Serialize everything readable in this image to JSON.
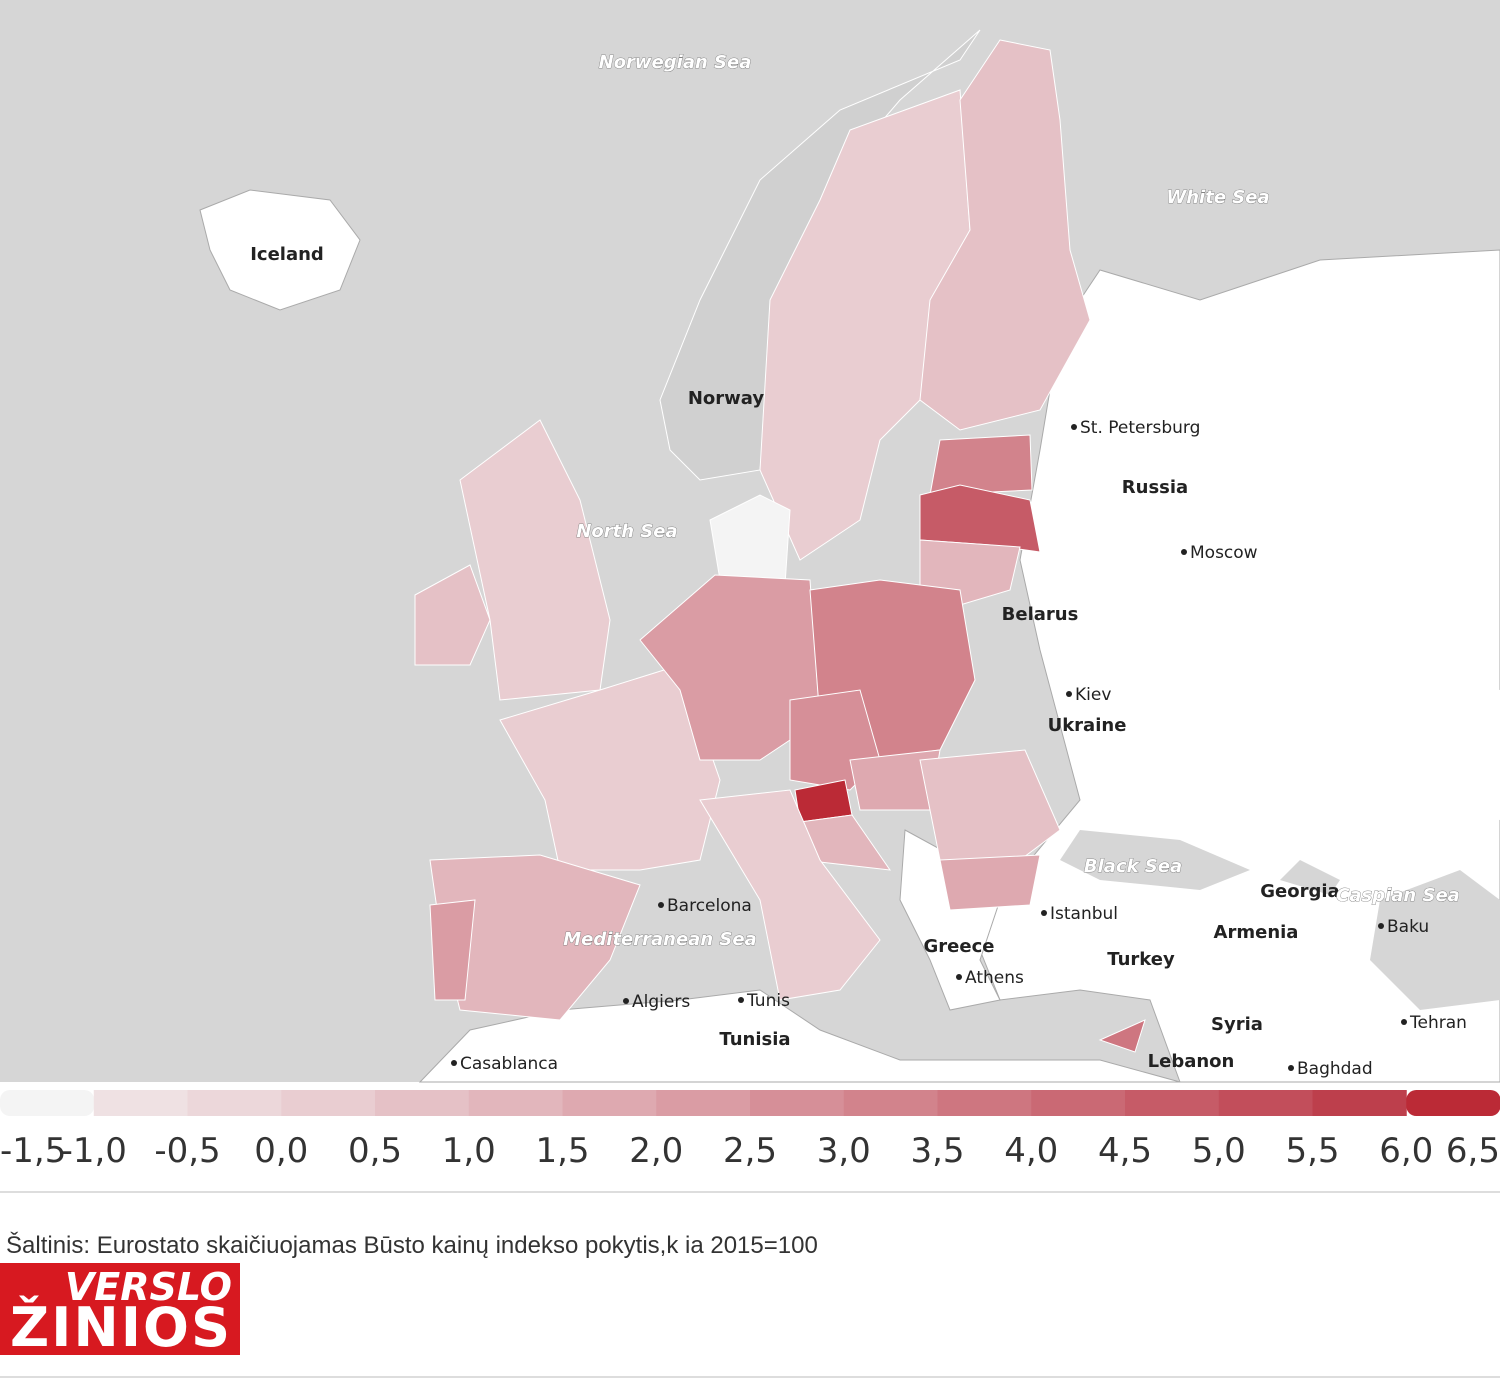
{
  "map_labels": [
    "Norwegian Sea",
    "White Sea",
    "Iceland",
    "Norway",
    "St. Petersburg",
    "Russia",
    "Moscow",
    "North Sea",
    "Belarus",
    "Kiev",
    "Ukraine",
    "Black Sea",
    "Georgia",
    "Caspian Sea",
    "Baku",
    "Istanbul",
    "Armenia",
    "Turkey",
    "Greece",
    "Athens",
    "Barcelona",
    "Mediterranean Sea",
    "Algiers",
    "Tunis",
    "Tunisia",
    "Syria",
    "Tehran",
    "Lebanon",
    "Baghdad",
    "Casablanca"
  ],
  "regions": [
    {
      "value": 0.3
    },
    {
      "value": 0.6
    },
    {
      "value": 3.0
    },
    {
      "value": 4.6
    },
    {
      "value": 1.4
    },
    {
      "value": -1.2
    },
    {
      "value": 0.8
    },
    {
      "value": 0.2
    },
    {
      "value": 0.1
    },
    {
      "value": 2.2
    },
    {
      "value": 3.0
    },
    {
      "value": 2.6
    },
    {
      "value": 6.2
    },
    {
      "value": 1.0
    },
    {
      "value": 1.6
    },
    {
      "value": 0.9
    },
    {
      "value": 1.8
    },
    {
      "value": 0.2
    },
    {
      "value": 1.0
    },
    {
      "value": 2.1
    },
    {
      "value": 3.6
    }
  ],
  "legend": {
    "colors": [
      "#f4f4f4",
      "#efe1e3",
      "#ecd7da",
      "#e9cdd1",
      "#e5c1c6",
      "#e2b6bc",
      "#dea9b0",
      "#da9ca4",
      "#d68f98",
      "#d2838c",
      "#ce7680",
      "#ca6974",
      "#c65b67",
      "#c24e5b",
      "#bd3f4c",
      "#bb2a36"
    ],
    "ticks": [
      {
        "value": -1.5,
        "label": "-1,5"
      },
      {
        "value": -1.0,
        "label": "-1,0"
      },
      {
        "value": -0.5,
        "label": "-0,5"
      },
      {
        "value": 0.0,
        "label": "0,0"
      },
      {
        "value": 0.5,
        "label": "0,5"
      },
      {
        "value": 1.0,
        "label": "1,0"
      },
      {
        "value": 1.5,
        "label": "1,5"
      },
      {
        "value": 2.0,
        "label": "2,0"
      },
      {
        "value": 2.5,
        "label": "2,5"
      },
      {
        "value": 3.0,
        "label": "3,0"
      },
      {
        "value": 3.5,
        "label": "3,5"
      },
      {
        "value": 4.0,
        "label": "4,0"
      },
      {
        "value": 4.5,
        "label": "4,5"
      },
      {
        "value": 5.0,
        "label": "5,0"
      },
      {
        "value": 5.5,
        "label": "5,5"
      },
      {
        "value": 6.0,
        "label": "6,0"
      },
      {
        "value": 6.5,
        "label": "6,5"
      }
    ]
  },
  "source": "Šaltinis: Eurostato skaičiuojamas Būsto kainų indekso pokytis,k ia 2015=100",
  "logo": {
    "line1": "VERSLO",
    "line2": "ŽINIOS"
  }
}
